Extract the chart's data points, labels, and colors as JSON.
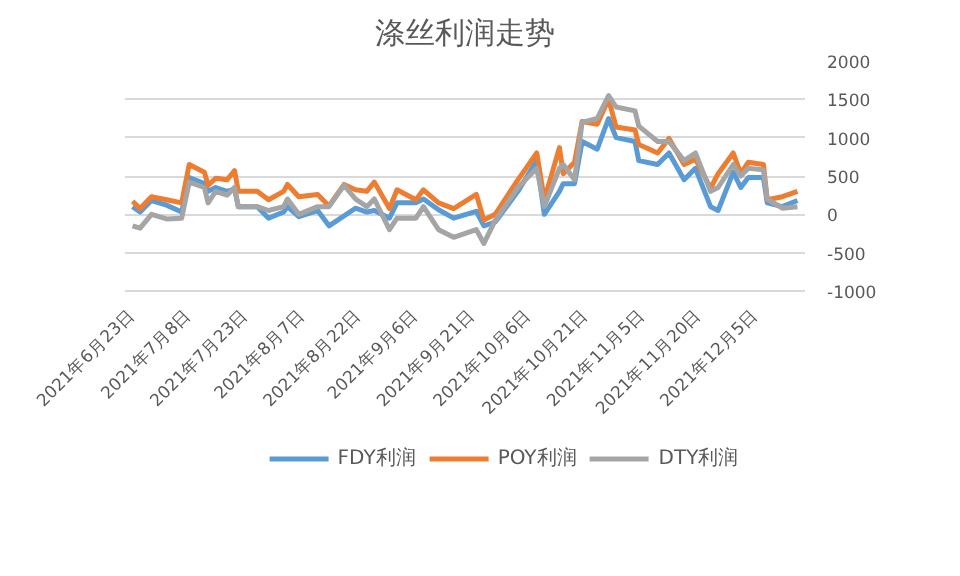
{
  "chart_data": {
    "type": "line",
    "title": "涤丝利润走势",
    "x": [
      "2021-06-23",
      "2021-06-25",
      "2021-06-28",
      "2021-07-02",
      "2021-07-06",
      "2021-07-08",
      "2021-07-12",
      "2021-07-13",
      "2021-07-15",
      "2021-07-18",
      "2021-07-20",
      "2021-07-21",
      "2021-07-26",
      "2021-07-29",
      "2021-08-02",
      "2021-08-03",
      "2021-08-06",
      "2021-08-11",
      "2021-08-14",
      "2021-08-18",
      "2021-08-21",
      "2021-08-24",
      "2021-08-26",
      "2021-08-30",
      "2021-09-01",
      "2021-09-06",
      "2021-09-08",
      "2021-09-12",
      "2021-09-16",
      "2021-09-22",
      "2021-09-24",
      "2021-09-27",
      "2021-10-03",
      "2021-10-08",
      "2021-10-10",
      "2021-10-14",
      "2021-10-15",
      "2021-10-18",
      "2021-10-20",
      "2021-10-24",
      "2021-10-27",
      "2021-10-29",
      "2021-11-03",
      "2021-11-04",
      "2021-11-09",
      "2021-11-12",
      "2021-11-16",
      "2021-11-19",
      "2021-11-23",
      "2021-11-25",
      "2021-11-29",
      "2021-12-01",
      "2021-12-03",
      "2021-12-07",
      "2021-12-08",
      "2021-12-12",
      "2021-12-16"
    ],
    "series": [
      {
        "name": "FDY利润",
        "color": "#5b9bd5",
        "values": [
          100,
          30,
          180,
          120,
          30,
          480,
          400,
          300,
          350,
          300,
          330,
          100,
          100,
          -50,
          30,
          100,
          -30,
          50,
          -150,
          -20,
          80,
          30,
          50,
          -50,
          150,
          150,
          200,
          60,
          -50,
          40,
          -150,
          -100,
          300,
          700,
          0,
          300,
          400,
          400,
          950,
          850,
          1250,
          1000,
          950,
          700,
          650,
          800,
          450,
          600,
          100,
          50,
          550,
          350,
          480,
          480,
          150,
          100,
          180
        ]
      },
      {
        "name": "POY利润",
        "color": "#ed7d31",
        "values": [
          170,
          75,
          230,
          190,
          150,
          650,
          550,
          380,
          470,
          450,
          570,
          300,
          300,
          190,
          300,
          390,
          230,
          260,
          110,
          390,
          320,
          300,
          420,
          75,
          320,
          190,
          320,
          150,
          75,
          260,
          -75,
          0,
          450,
          800,
          190,
          870,
          530,
          680,
          1210,
          1175,
          1500,
          1140,
          1100,
          910,
          800,
          990,
          650,
          720,
          340,
          530,
          800,
          530,
          680,
          650,
          190,
          230,
          300
        ]
      },
      {
        "name": "DTY利润",
        "color": "#a5a5a5",
        "values": [
          -150,
          -180,
          0,
          -60,
          -50,
          420,
          350,
          150,
          300,
          250,
          350,
          100,
          100,
          50,
          100,
          200,
          0,
          100,
          100,
          380,
          200,
          100,
          200,
          -200,
          -50,
          -50,
          100,
          -200,
          -300,
          -200,
          -380,
          -80,
          350,
          600,
          100,
          600,
          650,
          450,
          1200,
          1250,
          1550,
          1400,
          1350,
          1150,
          950,
          950,
          700,
          800,
          300,
          350,
          650,
          500,
          600,
          580,
          200,
          80,
          100
        ]
      }
    ],
    "xlim": [
      "2021-06-21",
      "2021-12-18"
    ],
    "xticks": [
      {
        "value": "2021-06-23",
        "label": "2021年6月23日"
      },
      {
        "value": "2021-07-08",
        "label": "2021年7月8日"
      },
      {
        "value": "2021-07-23",
        "label": "2021年7月23日"
      },
      {
        "value": "2021-08-07",
        "label": "2021年8月7日"
      },
      {
        "value": "2021-08-22",
        "label": "2021年8月22日"
      },
      {
        "value": "2021-09-06",
        "label": "2021年9月6日"
      },
      {
        "value": "2021-09-21",
        "label": "2021年9月21日"
      },
      {
        "value": "2021-10-06",
        "label": "2021年10月6日"
      },
      {
        "value": "2021-10-21",
        "label": "2021年10月21日"
      },
      {
        "value": "2021-11-05",
        "label": "2021年11月5日"
      },
      {
        "value": "2021-11-20",
        "label": "2021年11月20日"
      },
      {
        "value": "2021-12-05",
        "label": "2021年12月5日"
      }
    ],
    "ylim": [
      -1000,
      2000
    ],
    "yticks": [
      -1000,
      -500,
      0,
      500,
      1000,
      1500,
      2000
    ],
    "grid": "y",
    "legend": "bottom",
    "marker": "none",
    "line_style": "solid"
  }
}
